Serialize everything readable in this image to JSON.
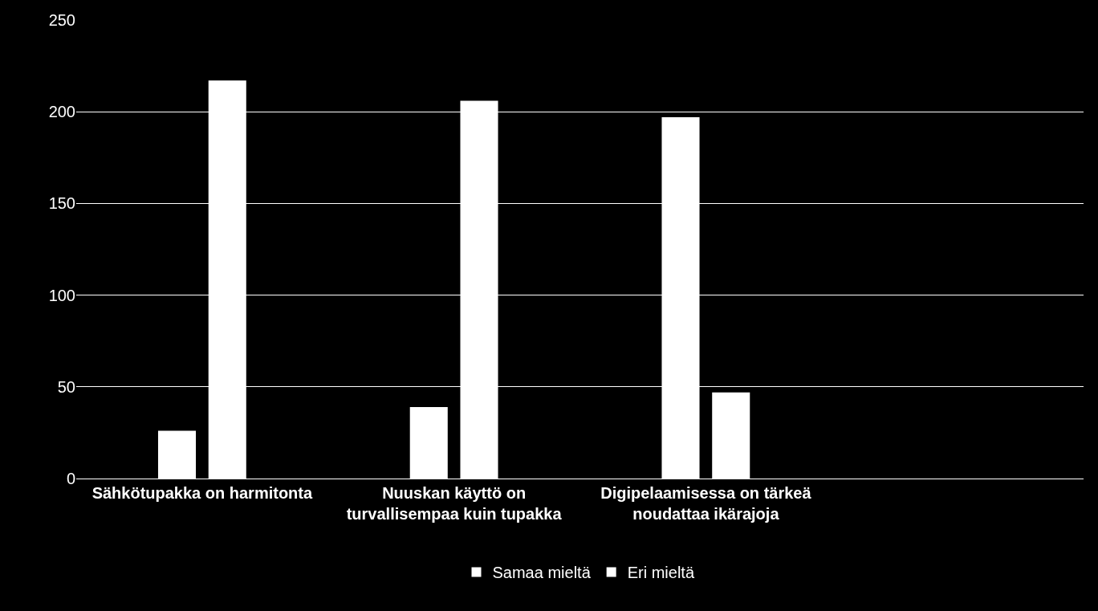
{
  "chart_data": {
    "type": "bar",
    "categories": [
      "Sähkötupakka on harmitonta",
      "Nuuskan käyttö on turvallisempaa kuin tupakka",
      "Digipelaamisessa on tärkeä noudattaa ikärajoja",
      null
    ],
    "series": [
      {
        "name": "Samaa mieltä",
        "color": "#ffffff",
        "values": [
          26,
          39,
          197,
          null
        ]
      },
      {
        "name": "Eri mieltä",
        "color": "#ffffff",
        "values": [
          217,
          206,
          47,
          null
        ]
      }
    ],
    "ylim": [
      0,
      250
    ],
    "yticks": [
      0,
      50,
      100,
      150,
      200,
      250
    ],
    "grid": "y",
    "legend": "bottom"
  }
}
